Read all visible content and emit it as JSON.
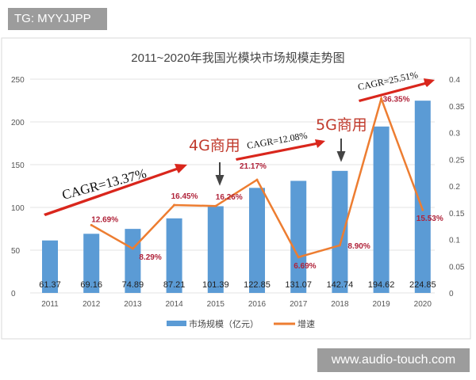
{
  "watermarks": {
    "top": "TG: MYYJJPP",
    "bottom": "www.audio-touch.com"
  },
  "chart_data": {
    "type": "bar+line",
    "title": "2011~2020年我国光模块市场规模走势图",
    "categories": [
      "2011",
      "2012",
      "2013",
      "2014",
      "2015",
      "2016",
      "2017",
      "2018",
      "2019",
      "2020"
    ],
    "series": [
      {
        "name": "市场规模（亿元）",
        "type": "bar",
        "axis": "left",
        "color": "#5b9bd5",
        "values": [
          61.37,
          69.16,
          74.89,
          87.21,
          101.39,
          122.85,
          131.07,
          142.74,
          194.62,
          224.85
        ],
        "labels": [
          "61.37",
          "69.16",
          "74.89",
          "87.21",
          "101.39",
          "122.85",
          "131.07",
          "142.74",
          "194.62",
          "224.85"
        ]
      },
      {
        "name": "增速",
        "type": "line",
        "axis": "right",
        "color": "#ed7d31",
        "values": [
          null,
          0.1269,
          0.0829,
          0.1645,
          0.1626,
          0.2117,
          0.0669,
          0.089,
          0.3635,
          0.1553
        ],
        "labels": [
          "",
          "12.69%",
          "8.29%",
          "16.45%",
          "16.26%",
          "21.17%",
          "6.69%",
          "8.90%",
          "36.35%",
          "15.53%"
        ]
      }
    ],
    "y_left": {
      "range": [
        0,
        250
      ],
      "ticks": [
        "0",
        "50",
        "100",
        "150",
        "200",
        "250"
      ]
    },
    "y_right": {
      "range": [
        0,
        0.4
      ],
      "ticks": [
        "0",
        "0.05",
        "0.1",
        "0.15",
        "0.2",
        "0.25",
        "0.3",
        "0.35",
        "0.4"
      ]
    },
    "grid": true,
    "legend": "bottom",
    "annotations": {
      "cagr1": "CAGR=13.37%",
      "cagr2": "CAGR=12.08%",
      "cagr3": "CAGR=25.51%",
      "g4": "4G商用",
      "g5": "5G商用"
    }
  }
}
